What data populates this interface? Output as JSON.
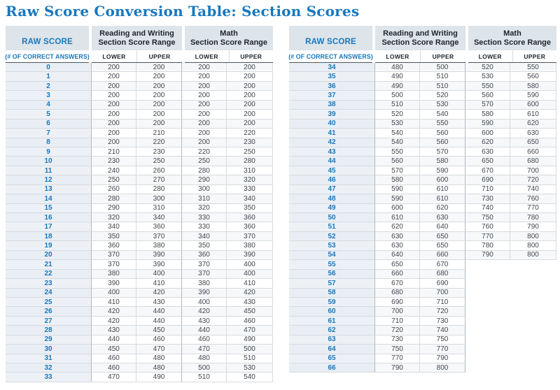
{
  "title": "Raw Score Conversion Table: Section Scores",
  "colors": {
    "accent_blue": "#1878be",
    "header_bg": "#dde4ea",
    "header_text": "#20262d",
    "raw_col_bg": "#edf1f6",
    "raw_col_alt_bg": "#e9eef4",
    "row_alt_bg": "#f6f8fa",
    "value_text": "#41474e",
    "border_light": "#d7dbdf",
    "border_dark": "#b3b9c0",
    "subhead_line": "#4e555c"
  },
  "tables": [
    {
      "header": {
        "raw_score": "RAW SCORE",
        "raw_score_sub": "(# OF CORRECT ANSWERS)",
        "rw_line1": "Reading and Writing",
        "rw_line2": "Section Score Range",
        "math_line1": "Math",
        "math_line2": "Section Score Range",
        "lower": "LOWER",
        "upper": "UPPER"
      },
      "rows": [
        [
          0,
          200,
          200,
          200,
          200
        ],
        [
          1,
          200,
          200,
          200,
          200
        ],
        [
          2,
          200,
          200,
          200,
          200
        ],
        [
          3,
          200,
          200,
          200,
          200
        ],
        [
          4,
          200,
          200,
          200,
          200
        ],
        [
          5,
          200,
          200,
          200,
          200
        ],
        [
          6,
          200,
          200,
          200,
          200
        ],
        [
          7,
          200,
          210,
          200,
          220
        ],
        [
          8,
          200,
          220,
          200,
          230
        ],
        [
          9,
          210,
          230,
          220,
          250
        ],
        [
          10,
          230,
          250,
          250,
          280
        ],
        [
          11,
          240,
          260,
          280,
          310
        ],
        [
          12,
          250,
          270,
          290,
          320
        ],
        [
          13,
          260,
          280,
          300,
          330
        ],
        [
          14,
          280,
          300,
          310,
          340
        ],
        [
          15,
          290,
          310,
          320,
          350
        ],
        [
          16,
          320,
          340,
          330,
          360
        ],
        [
          17,
          340,
          360,
          330,
          360
        ],
        [
          18,
          350,
          370,
          340,
          370
        ],
        [
          19,
          360,
          380,
          350,
          380
        ],
        [
          20,
          370,
          390,
          360,
          390
        ],
        [
          21,
          370,
          390,
          370,
          400
        ],
        [
          22,
          380,
          400,
          370,
          400
        ],
        [
          23,
          390,
          410,
          380,
          410
        ],
        [
          24,
          400,
          420,
          390,
          420
        ],
        [
          25,
          410,
          430,
          400,
          430
        ],
        [
          26,
          420,
          440,
          420,
          450
        ],
        [
          27,
          420,
          440,
          430,
          460
        ],
        [
          28,
          430,
          450,
          440,
          470
        ],
        [
          29,
          440,
          460,
          460,
          490
        ],
        [
          30,
          450,
          470,
          470,
          500
        ],
        [
          31,
          460,
          480,
          480,
          510
        ],
        [
          32,
          460,
          480,
          500,
          530
        ],
        [
          33,
          470,
          490,
          510,
          540
        ]
      ]
    },
    {
      "header": {
        "raw_score": "RAW SCORE",
        "raw_score_sub": "(# OF CORRECT ANSWERS)",
        "rw_line1": "Reading and Writing",
        "rw_line2": "Section Score Range",
        "math_line1": "Math",
        "math_line2": "Section Score Range",
        "lower": "LOWER",
        "upper": "UPPER"
      },
      "rows": [
        [
          34,
          480,
          500,
          520,
          550
        ],
        [
          35,
          490,
          510,
          530,
          560
        ],
        [
          36,
          490,
          510,
          550,
          580
        ],
        [
          37,
          500,
          520,
          560,
          590
        ],
        [
          38,
          510,
          530,
          570,
          600
        ],
        [
          39,
          520,
          540,
          580,
          610
        ],
        [
          40,
          530,
          550,
          590,
          620
        ],
        [
          41,
          540,
          560,
          600,
          630
        ],
        [
          42,
          540,
          560,
          620,
          650
        ],
        [
          43,
          550,
          570,
          630,
          660
        ],
        [
          44,
          560,
          580,
          650,
          680
        ],
        [
          45,
          570,
          590,
          670,
          700
        ],
        [
          46,
          580,
          600,
          690,
          720
        ],
        [
          47,
          590,
          610,
          710,
          740
        ],
        [
          48,
          590,
          610,
          730,
          760
        ],
        [
          49,
          600,
          620,
          740,
          770
        ],
        [
          50,
          610,
          630,
          750,
          780
        ],
        [
          51,
          620,
          640,
          760,
          790
        ],
        [
          52,
          630,
          650,
          770,
          800
        ],
        [
          53,
          630,
          650,
          780,
          800
        ],
        [
          54,
          640,
          660,
          790,
          800
        ],
        [
          55,
          650,
          670,
          null,
          null
        ],
        [
          56,
          660,
          680,
          null,
          null
        ],
        [
          57,
          670,
          690,
          null,
          null
        ],
        [
          58,
          680,
          700,
          null,
          null
        ],
        [
          59,
          690,
          710,
          null,
          null
        ],
        [
          60,
          700,
          720,
          null,
          null
        ],
        [
          61,
          710,
          730,
          null,
          null
        ],
        [
          62,
          720,
          740,
          null,
          null
        ],
        [
          63,
          730,
          750,
          null,
          null
        ],
        [
          64,
          750,
          770,
          null,
          null
        ],
        [
          65,
          770,
          790,
          null,
          null
        ],
        [
          66,
          790,
          800,
          null,
          null
        ]
      ]
    }
  ]
}
